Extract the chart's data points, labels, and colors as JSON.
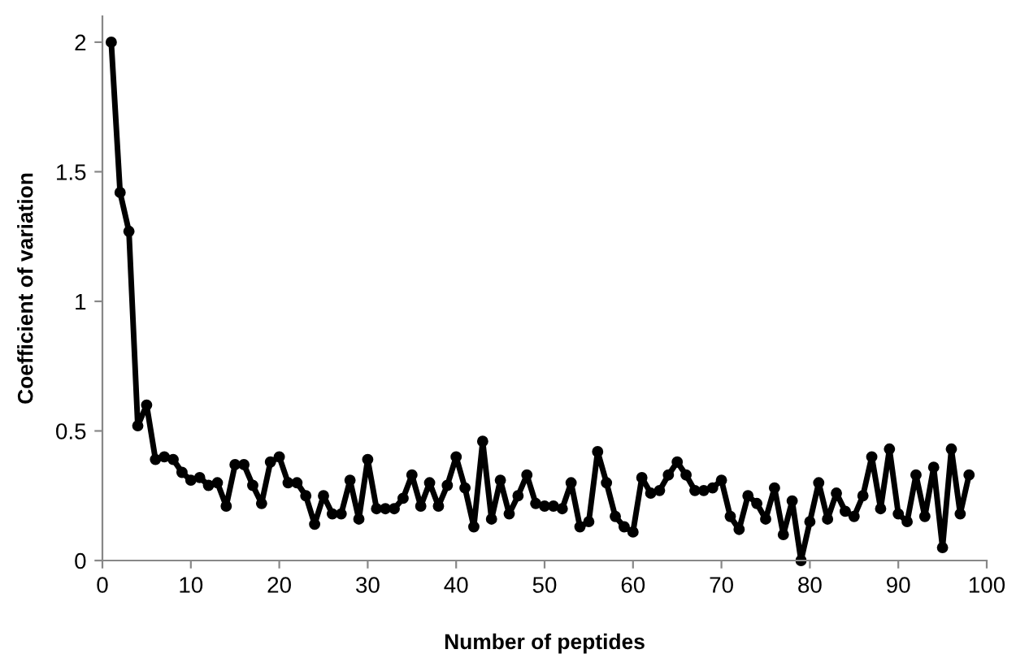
{
  "chart_data": {
    "type": "line",
    "xlabel": "Number of peptides",
    "ylabel": "Coefficient of variation",
    "x": [
      1,
      2,
      3,
      4,
      5,
      6,
      7,
      8,
      9,
      10,
      11,
      12,
      13,
      14,
      15,
      16,
      17,
      18,
      19,
      20,
      21,
      22,
      23,
      24,
      25,
      26,
      27,
      28,
      29,
      30,
      31,
      32,
      33,
      34,
      35,
      36,
      37,
      38,
      39,
      40,
      41,
      42,
      43,
      44,
      45,
      46,
      47,
      48,
      49,
      50,
      51,
      52,
      53,
      54,
      55,
      56,
      57,
      58,
      59,
      60,
      61,
      62,
      63,
      64,
      65,
      66,
      67,
      68,
      69,
      70,
      71,
      72,
      73,
      74,
      75,
      76,
      77,
      78,
      79,
      80,
      81,
      82,
      83,
      84,
      85,
      86,
      87,
      88,
      89,
      90,
      91,
      92,
      93,
      94,
      95,
      96,
      97,
      98
    ],
    "series": [
      {
        "color": "#000000",
        "values": [
          2.0,
          1.42,
          1.27,
          0.52,
          0.6,
          0.39,
          0.4,
          0.39,
          0.34,
          0.31,
          0.32,
          0.29,
          0.3,
          0.21,
          0.37,
          0.37,
          0.29,
          0.22,
          0.38,
          0.4,
          0.3,
          0.3,
          0.25,
          0.14,
          0.25,
          0.18,
          0.18,
          0.31,
          0.16,
          0.39,
          0.2,
          0.2,
          0.2,
          0.24,
          0.33,
          0.21,
          0.3,
          0.21,
          0.29,
          0.4,
          0.28,
          0.13,
          0.46,
          0.16,
          0.31,
          0.18,
          0.25,
          0.33,
          0.22,
          0.21,
          0.21,
          0.2,
          0.3,
          0.13,
          0.15,
          0.42,
          0.3,
          0.17,
          0.13,
          0.11,
          0.32,
          0.26,
          0.27,
          0.33,
          0.38,
          0.33,
          0.27,
          0.27,
          0.28,
          0.31,
          0.17,
          0.12,
          0.25,
          0.22,
          0.16,
          0.28,
          0.1,
          0.23,
          0.0,
          0.15,
          0.3,
          0.16,
          0.26,
          0.19,
          0.17,
          0.25,
          0.4,
          0.2,
          0.43,
          0.18,
          0.15,
          0.33,
          0.17,
          0.36,
          0.05,
          0.43,
          0.18,
          0.33
        ]
      }
    ],
    "xlim": [
      0,
      100
    ],
    "xticks": [
      0,
      10,
      20,
      30,
      40,
      50,
      60,
      70,
      80,
      90,
      100
    ],
    "ylim": [
      0,
      2.1
    ],
    "yticks": [
      0,
      0.5,
      1,
      1.5,
      2
    ],
    "marker": "circle",
    "line_style": "solid",
    "grid": false,
    "legend": false
  }
}
